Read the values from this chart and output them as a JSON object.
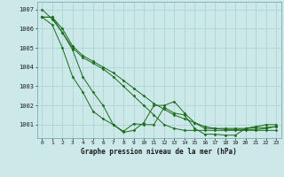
{
  "title": "Graphe pression niveau de la mer (hPa)",
  "background_color": "#cde8e8",
  "grid_color": "#b0d8d8",
  "line_color": "#1a6b1a",
  "marker_color": "#1a6b1a",
  "xlim": [
    -0.5,
    23.5
  ],
  "ylim": [
    1000.3,
    1007.4
  ],
  "yticks": [
    1001,
    1002,
    1003,
    1004,
    1005,
    1006,
    1007
  ],
  "xticks": [
    0,
    1,
    2,
    3,
    4,
    5,
    6,
    7,
    8,
    9,
    10,
    11,
    12,
    13,
    14,
    15,
    16,
    17,
    18,
    19,
    20,
    21,
    22,
    23
  ],
  "series": [
    [
      1007.0,
      1006.5,
      1005.8,
      1004.9,
      1003.5,
      1002.7,
      1002.0,
      1001.0,
      1000.6,
      1000.7,
      1001.1,
      1002.0,
      1002.0,
      1002.2,
      1001.6,
      1001.1,
      1000.8,
      1000.8,
      1000.8,
      1000.8,
      1000.8,
      1000.9,
      1001.0,
      1001.0
    ],
    [
      1006.6,
      1006.6,
      1005.8,
      1005.0,
      1004.5,
      1004.2,
      1003.9,
      1003.5,
      1003.0,
      1002.5,
      1002.0,
      1001.5,
      1001.0,
      1000.8,
      1000.7,
      1000.7,
      1000.7,
      1000.7,
      1000.7,
      1000.7,
      1000.7,
      1000.7,
      1000.7,
      1000.7
    ],
    [
      1006.6,
      1006.6,
      1006.0,
      1005.1,
      1004.6,
      1004.3,
      1004.0,
      1003.7,
      1003.3,
      1002.9,
      1002.5,
      1002.1,
      1001.8,
      1001.5,
      1001.3,
      1001.1,
      1000.9,
      1000.8,
      1000.75,
      1000.75,
      1000.75,
      1000.75,
      1000.8,
      1000.9
    ],
    [
      1006.6,
      1006.2,
      1005.0,
      1003.5,
      1002.7,
      1001.7,
      1001.3,
      1001.0,
      1000.65,
      1001.05,
      1001.0,
      1001.0,
      1001.9,
      1001.6,
      1001.5,
      1000.8,
      1000.5,
      1000.5,
      1000.45,
      1000.45,
      1000.8,
      1000.85,
      1000.85,
      1000.9
    ]
  ]
}
